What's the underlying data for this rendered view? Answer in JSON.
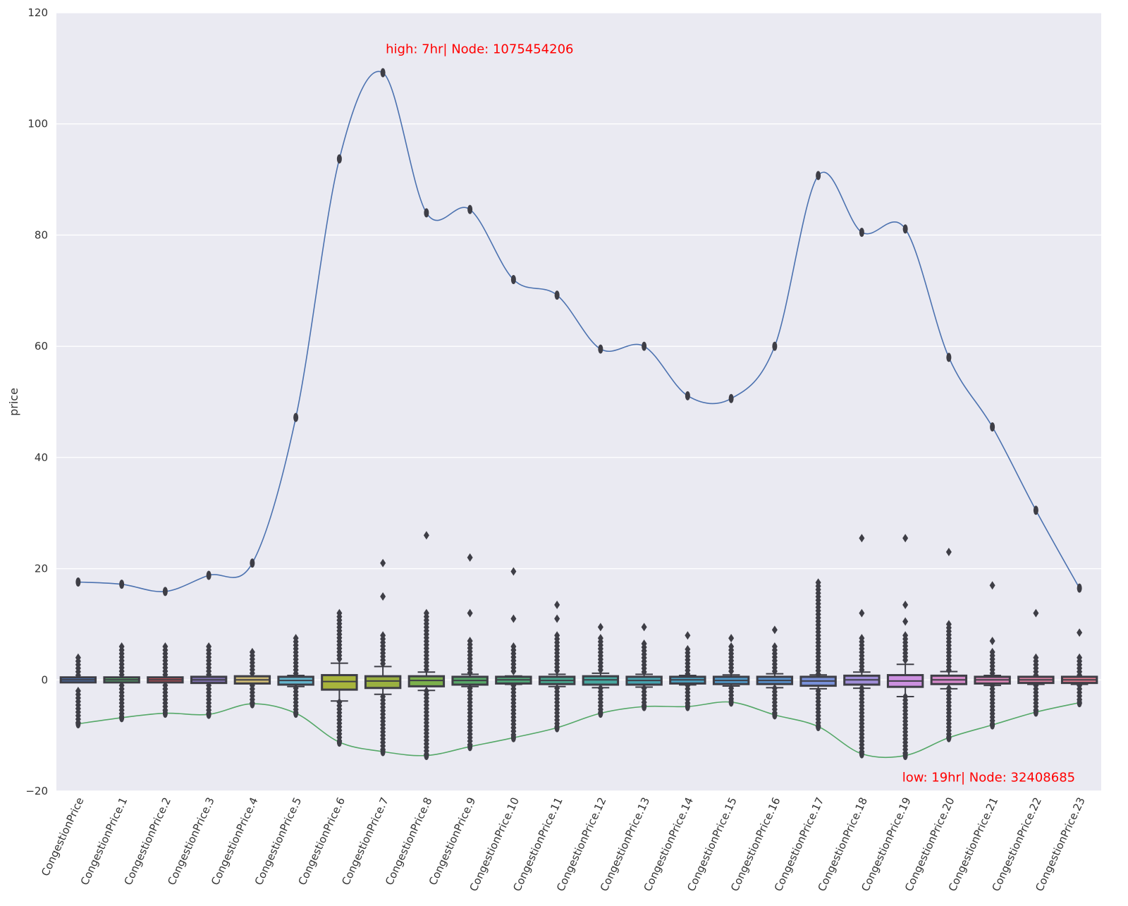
{
  "chart_data": {
    "type": "box",
    "title": "",
    "xlabel": "",
    "ylabel": "price",
    "ylim": [
      -20,
      120
    ],
    "yticks": [
      -20,
      0,
      20,
      40,
      60,
      80,
      100,
      120
    ],
    "grid": true,
    "categories": [
      "CongestionPrice",
      "CongestionPrice.1",
      "CongestionPrice.2",
      "CongestionPrice.3",
      "CongestionPrice.4",
      "CongestionPrice.5",
      "CongestionPrice.6",
      "CongestionPrice.7",
      "CongestionPrice.8",
      "CongestionPrice.9",
      "CongestionPrice.10",
      "CongestionPrice.11",
      "CongestionPrice.12",
      "CongestionPrice.13",
      "CongestionPrice.14",
      "CongestionPrice.15",
      "CongestionPrice.16",
      "CongestionPrice.17",
      "CongestionPrice.18",
      "CongestionPrice.19",
      "CongestionPrice.20",
      "CongestionPrice.21",
      "CongestionPrice.22",
      "CongestionPrice.23"
    ],
    "boxes": [
      {
        "q1": -0.2,
        "median": 0,
        "q3": 0.2,
        "whislo": -0.3,
        "whishi": 0.3,
        "fill": "#4c72b0"
      },
      {
        "q1": -0.2,
        "median": 0,
        "q3": 0.2,
        "whislo": -0.3,
        "whishi": 0.3,
        "fill": "#55a868"
      },
      {
        "q1": -0.2,
        "median": 0,
        "q3": 0.2,
        "whislo": -0.3,
        "whishi": 0.3,
        "fill": "#c44e52"
      },
      {
        "q1": -0.3,
        "median": 0,
        "q3": 0.3,
        "whislo": -0.4,
        "whishi": 0.4,
        "fill": "#8172b2"
      },
      {
        "q1": -0.4,
        "median": 0,
        "q3": 0.4,
        "whislo": -0.6,
        "whishi": 0.6,
        "fill": "#ccb974"
      },
      {
        "q1": -0.6,
        "median": -0.1,
        "q3": 0.3,
        "whislo": -1.2,
        "whishi": 0.8,
        "fill": "#64b5cd"
      },
      {
        "q1": -1.5,
        "median": -0.3,
        "q3": 0.6,
        "whislo": -3.8,
        "whishi": 3.0,
        "fill": "#a8b43c"
      },
      {
        "q1": -1.2,
        "median": -0.2,
        "q3": 0.4,
        "whislo": -2.6,
        "whishi": 2.4,
        "fill": "#9ab040"
      },
      {
        "q1": -0.9,
        "median": -0.1,
        "q3": 0.4,
        "whislo": -1.9,
        "whishi": 1.4,
        "fill": "#7cb04c"
      },
      {
        "q1": -0.6,
        "median": -0.1,
        "q3": 0.3,
        "whislo": -1.2,
        "whishi": 1.0,
        "fill": "#58a868"
      },
      {
        "q1": -0.4,
        "median": 0,
        "q3": 0.3,
        "whislo": -0.8,
        "whishi": 0.7,
        "fill": "#50a878"
      },
      {
        "q1": -0.5,
        "median": -0.1,
        "q3": 0.3,
        "whislo": -1.2,
        "whishi": 1.0,
        "fill": "#4aa890"
      },
      {
        "q1": -0.6,
        "median": 0,
        "q3": 0.4,
        "whislo": -1.4,
        "whishi": 1.2,
        "fill": "#48a8a0"
      },
      {
        "q1": -0.6,
        "median": -0.1,
        "q3": 0.3,
        "whislo": -1.3,
        "whishi": 1.0,
        "fill": "#48a4b0"
      },
      {
        "q1": -0.4,
        "median": 0,
        "q3": 0.3,
        "whislo": -0.9,
        "whishi": 0.8,
        "fill": "#4ca0c0"
      },
      {
        "q1": -0.5,
        "median": -0.1,
        "q3": 0.3,
        "whislo": -1.1,
        "whishi": 0.9,
        "fill": "#5098c8"
      },
      {
        "q1": -0.5,
        "median": -0.1,
        "q3": 0.3,
        "whislo": -1.4,
        "whishi": 1.1,
        "fill": "#5890cc"
      },
      {
        "q1": -0.8,
        "median": -0.2,
        "q3": 0.3,
        "whislo": -1.6,
        "whishi": 0.9,
        "fill": "#7890d8"
      },
      {
        "q1": -0.6,
        "median": 0,
        "q3": 0.5,
        "whislo": -1.5,
        "whishi": 1.4,
        "fill": "#a08ed8"
      },
      {
        "q1": -1.0,
        "median": -0.2,
        "q3": 0.6,
        "whislo": -3.0,
        "whishi": 2.8,
        "fill": "#cc90e0"
      },
      {
        "q1": -0.5,
        "median": 0,
        "q3": 0.5,
        "whislo": -1.6,
        "whishi": 1.5,
        "fill": "#d488c8"
      },
      {
        "q1": -0.4,
        "median": 0,
        "q3": 0.3,
        "whislo": -1.0,
        "whishi": 0.8,
        "fill": "#d884b4"
      },
      {
        "q1": -0.3,
        "median": 0,
        "q3": 0.3,
        "whislo": -0.8,
        "whishi": 0.6,
        "fill": "#dc80a0"
      },
      {
        "q1": -0.3,
        "median": 0,
        "q3": 0.3,
        "whislo": -0.8,
        "whishi": 0.6,
        "fill": "#e07c90"
      }
    ],
    "outlier_ranges": [
      {
        "low": [
          -8,
          -2
        ],
        "high": [
          0.5,
          4
        ]
      },
      {
        "low": [
          -7,
          -1
        ],
        "high": [
          0.5,
          6
        ]
      },
      {
        "low": [
          -6,
          -1
        ],
        "high": [
          0.5,
          6
        ]
      },
      {
        "low": [
          -6.5,
          -1
        ],
        "high": [
          0.5,
          6
        ]
      },
      {
        "low": [
          -4.5,
          -1
        ],
        "high": [
          0.8,
          5
        ]
      },
      {
        "low": [
          -6,
          -1.5
        ],
        "high": [
          1,
          7.5
        ]
      },
      {
        "low": [
          -11,
          -4
        ],
        "high": [
          3.5,
          12
        ]
      },
      {
        "low": [
          -13,
          -3
        ],
        "high": [
          2.5,
          8
        ]
      },
      {
        "low": [
          -14,
          -2
        ],
        "high": [
          1.5,
          12
        ]
      },
      {
        "low": [
          -12,
          -1.5
        ],
        "high": [
          1,
          7
        ]
      },
      {
        "low": [
          -10.5,
          -1
        ],
        "high": [
          1,
          6
        ]
      },
      {
        "low": [
          -9,
          -1.5
        ],
        "high": [
          1.2,
          8
        ]
      },
      {
        "low": [
          -6,
          -1.5
        ],
        "high": [
          1.5,
          7.5
        ]
      },
      {
        "low": [
          -5,
          -1.5
        ],
        "high": [
          1.2,
          6.5
        ]
      },
      {
        "low": [
          -5,
          -1
        ],
        "high": [
          1,
          5.5
        ]
      },
      {
        "low": [
          -4,
          -1.5
        ],
        "high": [
          1,
          6
        ]
      },
      {
        "low": [
          -6,
          -1.5
        ],
        "high": [
          1.2,
          6
        ]
      },
      {
        "low": [
          -8.5,
          -2
        ],
        "high": [
          1,
          17.5
        ]
      },
      {
        "low": [
          -13.5,
          -1.5
        ],
        "high": [
          1.5,
          7.5
        ]
      },
      {
        "low": [
          -13.5,
          -3
        ],
        "high": [
          3,
          8
        ]
      },
      {
        "low": [
          -10.5,
          -1.5
        ],
        "high": [
          1.5,
          10
        ]
      },
      {
        "low": [
          -8,
          -1
        ],
        "high": [
          1,
          5
        ]
      },
      {
        "low": [
          -6,
          -1
        ],
        "high": [
          0.8,
          4
        ]
      },
      {
        "low": [
          -4.5,
          -1
        ],
        "high": [
          0.8,
          4
        ]
      }
    ],
    "extra_outliers": [
      [],
      [],
      [],
      [],
      [],
      [],
      [],
      [
        15,
        21
      ],
      [
        26
      ],
      [
        12,
        22
      ],
      [
        11,
        19.5
      ],
      [
        11,
        13.5
      ],
      [
        9.5
      ],
      [
        9.5
      ],
      [
        8
      ],
      [
        7.5
      ],
      [
        9
      ],
      [],
      [
        12,
        25.5
      ],
      [
        10.5,
        13.5,
        25.5
      ],
      [
        23
      ],
      [
        7,
        17
      ],
      [
        12
      ],
      [
        8.5
      ]
    ],
    "series": [
      {
        "name": "",
        "color": "#4c72b0",
        "values": [
          17.6,
          17.2,
          15.9,
          18.8,
          21.0,
          47.2,
          93.7,
          109.2,
          84.0,
          84.6,
          72.0,
          69.2,
          59.5,
          60.0,
          51.1,
          50.6,
          60.0,
          90.7,
          80.5,
          81.1,
          58.0,
          45.5,
          30.5,
          16.5
        ]
      },
      {
        "name": "",
        "color": "#55a868",
        "values": [
          -7.9,
          -6.8,
          -6.0,
          -6.2,
          -4.3,
          -6.0,
          -11.2,
          -12.9,
          -13.6,
          -12.0,
          -10.4,
          -8.6,
          -6.0,
          -4.8,
          -4.8,
          -4.0,
          -6.3,
          -8.4,
          -13.3,
          -13.6,
          -10.4,
          -8.1,
          -5.8,
          -4.1
        ]
      }
    ],
    "annotations": [
      {
        "text": "high: 7hr| Node: 1075454206",
        "x": 7,
        "y": 113.5,
        "color": "#ff0000"
      },
      {
        "text": "low: 19hr| Node: 32408685",
        "x": 23,
        "y": -17.5,
        "color": "#ff0000"
      }
    ]
  }
}
